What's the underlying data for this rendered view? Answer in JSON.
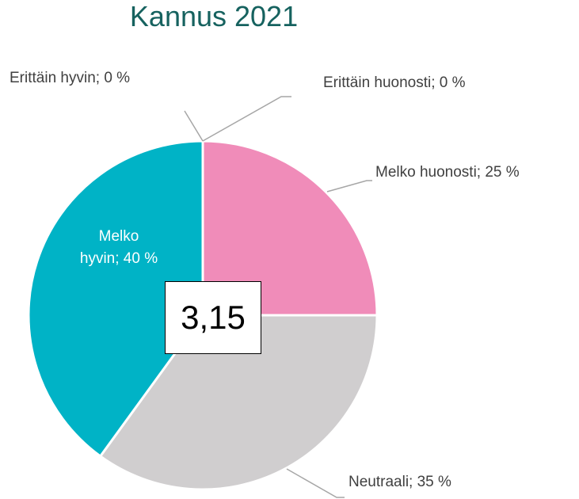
{
  "chart_data": {
    "type": "pie",
    "title": "Kannus 2021",
    "values": [
      0,
      25,
      35,
      40,
      0
    ],
    "value_labels": [
      "Erittäin huonosti; 0 %",
      "Melko huonosti; 25 %",
      "Neutraali; 35 %",
      "Melko hyvin; 40 %",
      "Erittäin hyvin; 0 %"
    ],
    "colors": [
      "#c00000",
      "#f08cb9",
      "#d0cecf",
      "#00b3c6",
      "#006d6f"
    ],
    "annotation": "3,15"
  }
}
